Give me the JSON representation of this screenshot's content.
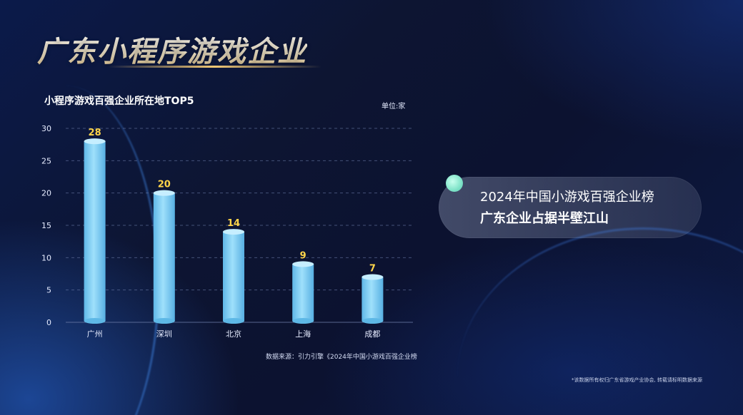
{
  "header": {
    "title": "广东小程序游戏企业"
  },
  "chart_data": {
    "type": "bar",
    "title": "小程序游戏百强企业所在地TOP5",
    "unit_label": "单位:家",
    "categories": [
      "广州",
      "深圳",
      "北京",
      "上海",
      "成都"
    ],
    "values": [
      28,
      20,
      14,
      9,
      7
    ],
    "ylim": [
      0,
      30
    ],
    "yticks": [
      0,
      5,
      10,
      15,
      20,
      25,
      30
    ],
    "grid": true,
    "data_labels": true,
    "colors": {
      "bar": "#8fd6f6",
      "bar_edge": "#5eb8e6",
      "value_label": "#ffd54a",
      "grid": "#6a7aa6",
      "axis_text": "#e6ecff"
    }
  },
  "source": "数据来源：引力引擎《2024年中国小游戏百强企业榜",
  "callout": {
    "line1": "2024年中国小游戏百强企业榜",
    "line2": "广东企业占据半壁江山"
  },
  "footnote": "*该数据所有权归广东省游戏产业协会, 转载请标明数据来源"
}
